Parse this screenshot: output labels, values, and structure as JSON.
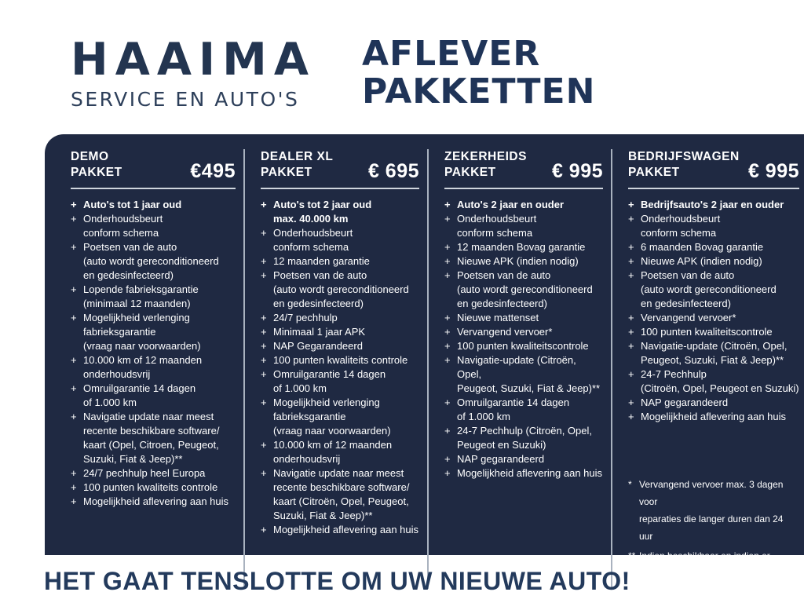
{
  "colors": {
    "panel_bg": "#1F2942",
    "logo_navy": "#233550",
    "title_navy": "#1F3458",
    "tagline_navy": "#233A5C",
    "divider": "#A9B2BF",
    "underline": "#CFD5DD",
    "panel_text": "#FFFFFF"
  },
  "icons": {
    "plus_marker": "+"
  },
  "logo": {
    "name": "HAAIMA",
    "tagline": "SERVICE EN AUTO'S"
  },
  "title": {
    "line1": "AFLEVER",
    "line2": "PAKKETTEN"
  },
  "footer": {
    "text": "HET GAAT TENSLOTTE OM UW NIEUWE AUTO!"
  },
  "footnotes": [
    {
      "marker": "*",
      "text": "Vervangend vervoer max. 3 dagen voor\nreparaties die langer duren dan 24 uur"
    },
    {
      "marker": "**",
      "text": "Indien beschikbaar en indien er\nnavigatie in de auto zit."
    }
  ],
  "packages": [
    {
      "slug": "demo",
      "name_line1": "DEMO",
      "name_line2": "PAKKET",
      "price": "€495",
      "items": [
        {
          "text": "Auto's tot 1 jaar oud",
          "bold": true
        },
        {
          "text": "Onderhoudsbeurt\nconform schema"
        },
        {
          "text": "Poetsen van de auto\n(auto wordt gereconditioneerd\nen gedesinfecteerd)"
        },
        {
          "text": "Lopende fabrieksgarantie\n(minimaal 12 maanden)"
        },
        {
          "text": "Mogelijkheid verlenging\nfabrieksgarantie\n(vraag naar voorwaarden)"
        },
        {
          "text": "10.000 km of 12 maanden\nonderhoudsvrij"
        },
        {
          "text": "Omruilgarantie 14 dagen\nof 1.000 km"
        },
        {
          "text": "Navigatie update naar meest\nrecente beschikbare software/\nkaart (Opel, Citroen, Peugeot,\nSuzuki, Fiat & Jeep)**"
        },
        {
          "text": "24/7 pechhulp heel Europa"
        },
        {
          "text": "100 punten kwaliteits controle"
        },
        {
          "text": "Mogelijkheid aflevering aan huis"
        }
      ]
    },
    {
      "slug": "dealer-xl",
      "name_line1": "DEALER XL",
      "name_line2": "PAKKET",
      "price": "€ 695",
      "items": [
        {
          "text": "Auto's tot 2 jaar oud\nmax. 40.000 km",
          "bold": true
        },
        {
          "text": "Onderhoudsbeurt\nconform schema"
        },
        {
          "text": "12 maanden garantie"
        },
        {
          "text": "Poetsen van de auto\n(auto wordt gereconditioneerd\nen gedesinfecteerd)"
        },
        {
          "text": "24/7 pechhulp"
        },
        {
          "text": "Minimaal 1 jaar APK"
        },
        {
          "text": "NAP Gegarandeerd"
        },
        {
          "text": "100 punten kwaliteits controle"
        },
        {
          "text": "Omruilgarantie 14 dagen\nof 1.000 km"
        },
        {
          "text": "Mogelijkheid verlenging\nfabrieksgarantie\n(vraag naar voorwaarden)"
        },
        {
          "text": "10.000 km of 12 maanden\nonderhoudsvrij"
        },
        {
          "text": "Navigatie update naar meest\nrecente beschikbare software/\nkaart (Citroën, Opel, Peugeot,\nSuzuki, Fiat & Jeep)**"
        },
        {
          "text": "Mogelijkheid aflevering aan huis"
        }
      ]
    },
    {
      "slug": "zekerheids",
      "name_line1": "ZEKERHEIDS",
      "name_line2": "PAKKET",
      "price": "€ 995",
      "items": [
        {
          "text": "Auto's 2 jaar en ouder",
          "bold": true
        },
        {
          "text": "Onderhoudsbeurt\nconform schema"
        },
        {
          "text": "12 maanden Bovag garantie"
        },
        {
          "text": "Nieuwe APK (indien nodig)"
        },
        {
          "text": "Poetsen van de auto\n(auto wordt gereconditioneerd\nen gedesinfecteerd)"
        },
        {
          "text": "Nieuwe mattenset"
        },
        {
          "text": "Vervangend vervoer*"
        },
        {
          "text": "100 punten kwaliteitscontrole"
        },
        {
          "text": "Navigatie-update (Citroën, Opel,\nPeugeot, Suzuki, Fiat & Jeep)**"
        },
        {
          "text": "Omruilgarantie 14 dagen\nof 1.000 km"
        },
        {
          "text": "24-7 Pechhulp (Citroën, Opel,\nPeugeot en Suzuki)"
        },
        {
          "text": "NAP gegarandeerd"
        },
        {
          "text": "Mogelijkheid aflevering aan huis"
        }
      ]
    },
    {
      "slug": "bedrijfswagen",
      "name_line1": "BEDRIJFSWAGEN",
      "name_line2": "PAKKET",
      "price": "€ 995",
      "items": [
        {
          "text": "Bedrijfsauto's 2 jaar en ouder",
          "bold": true
        },
        {
          "text": "Onderhoudsbeurt\nconform schema"
        },
        {
          "text": "6 maanden Bovag garantie"
        },
        {
          "text": "Nieuwe APK (indien nodig)"
        },
        {
          "text": "Poetsen van de auto\n(auto wordt gereconditioneerd\nen gedesinfecteerd)"
        },
        {
          "text": "Vervangend vervoer*"
        },
        {
          "text": "100 punten kwaliteitscontrole"
        },
        {
          "text": "Navigatie-update (Citroën, Opel,\nPeugeot, Suzuki, Fiat & Jeep)**"
        },
        {
          "text": "24-7 Pechhulp\n(Citroën, Opel, Peugeot en Suzuki)"
        },
        {
          "text": "NAP gegarandeerd"
        },
        {
          "text": "Mogelijkheid aflevering aan huis"
        }
      ]
    }
  ]
}
